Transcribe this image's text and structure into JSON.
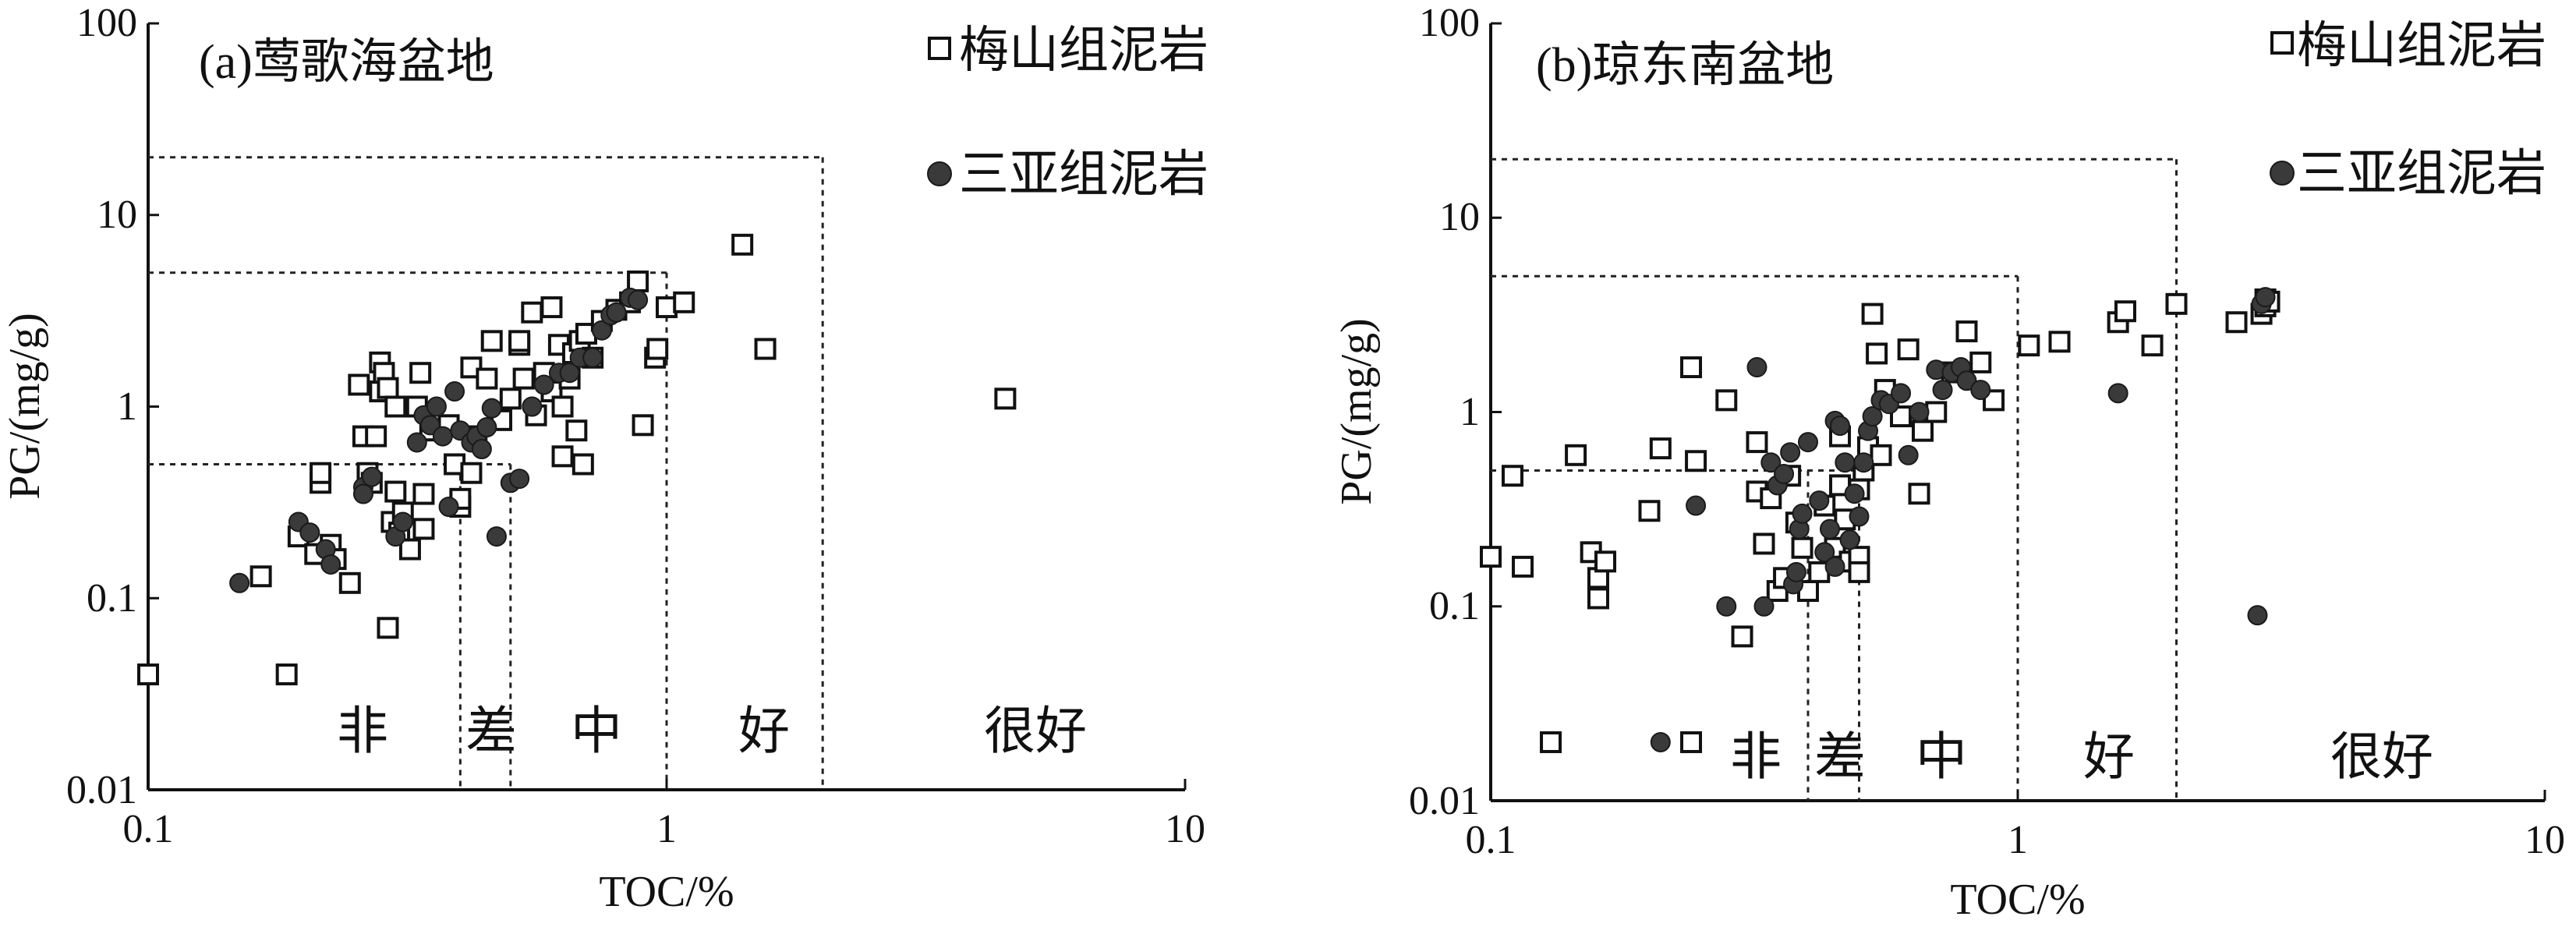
{
  "chart_data": [
    {
      "type": "scatter",
      "title": "(a)莺歌海盆地",
      "xlabel": "TOC/%",
      "ylabel": "PG/(mg/g)",
      "x_scale": "log",
      "y_scale": "log",
      "xlim": [
        0.1,
        10
      ],
      "ylim": [
        0.01,
        100
      ],
      "x_ticks": [
        "0.1",
        "1",
        "10"
      ],
      "y_ticks": [
        "0.01",
        "0.1",
        "1",
        "10",
        "100"
      ],
      "grid": false,
      "legend_position": "top-right",
      "legend": [
        {
          "label": "梅山组泥岩",
          "marker": "open-square"
        },
        {
          "label": "三亚组泥岩",
          "marker": "filled-circle"
        }
      ],
      "region_labels": [
        "非",
        "差",
        "中",
        "好",
        "很好"
      ],
      "threshold_lines": {
        "toc": [
          0.4,
          0.5,
          1,
          2
        ],
        "pg": [
          0.5,
          5,
          20
        ]
      },
      "series": [
        {
          "name": "梅山组泥岩",
          "marker": "open-square",
          "points": [
            [
              0.1,
              0.04
            ],
            [
              0.165,
              0.13
            ],
            [
              0.185,
              0.04
            ],
            [
              0.195,
              0.21
            ],
            [
              0.21,
              0.17
            ],
            [
              0.215,
              0.4
            ],
            [
              0.215,
              0.45
            ],
            [
              0.225,
              0.19
            ],
            [
              0.23,
              0.16
            ],
            [
              0.245,
              0.12
            ],
            [
              0.255,
              1.3
            ],
            [
              0.26,
              0.7
            ],
            [
              0.265,
              0.45
            ],
            [
              0.27,
              0.4
            ],
            [
              0.275,
              0.7
            ],
            [
              0.28,
              1.2
            ],
            [
              0.28,
              1.7
            ],
            [
              0.285,
              1.5
            ],
            [
              0.29,
              0.07
            ],
            [
              0.29,
              1.25
            ],
            [
              0.295,
              0.25
            ],
            [
              0.3,
              1.0
            ],
            [
              0.3,
              0.36
            ],
            [
              0.305,
              0.22
            ],
            [
              0.31,
              0.28
            ],
            [
              0.32,
              0.18
            ],
            [
              0.33,
              1.0
            ],
            [
              0.335,
              1.5
            ],
            [
              0.34,
              0.23
            ],
            [
              0.34,
              0.35
            ],
            [
              0.35,
              0.75
            ],
            [
              0.38,
              0.8
            ],
            [
              0.39,
              0.5
            ],
            [
              0.4,
              0.3
            ],
            [
              0.4,
              0.33
            ],
            [
              0.42,
              0.45
            ],
            [
              0.42,
              1.6
            ],
            [
              0.43,
              0.7
            ],
            [
              0.45,
              1.4
            ],
            [
              0.46,
              2.2
            ],
            [
              0.48,
              0.85
            ],
            [
              0.5,
              1.1
            ],
            [
              0.52,
              2.1
            ],
            [
              0.52,
              2.2
            ],
            [
              0.53,
              1.4
            ],
            [
              0.55,
              3.1
            ],
            [
              0.56,
              0.9
            ],
            [
              0.58,
              1.5
            ],
            [
              0.6,
              3.3
            ],
            [
              0.6,
              1.2
            ],
            [
              0.62,
              2.1
            ],
            [
              0.63,
              1.0
            ],
            [
              0.63,
              0.55
            ],
            [
              0.65,
              1.4
            ],
            [
              0.66,
              1.9
            ],
            [
              0.67,
              0.75
            ],
            [
              0.68,
              2.2
            ],
            [
              0.69,
              0.5
            ],
            [
              0.7,
              2.4
            ],
            [
              0.72,
              1.8
            ],
            [
              0.75,
              2.8
            ],
            [
              0.8,
              3.2
            ],
            [
              0.85,
              3.5
            ],
            [
              0.88,
              4.5
            ],
            [
              0.9,
              0.8
            ],
            [
              0.95,
              1.8
            ],
            [
              0.96,
              2.0
            ],
            [
              1.0,
              3.3
            ],
            [
              1.08,
              3.5
            ],
            [
              1.4,
              7.0
            ],
            [
              1.55,
              2.0
            ],
            [
              4.5,
              1.1
            ]
          ]
        },
        {
          "name": "三亚组泥岩",
          "marker": "filled-circle",
          "points": [
            [
              0.15,
              0.12
            ],
            [
              0.195,
              0.25
            ],
            [
              0.205,
              0.22
            ],
            [
              0.22,
              0.18
            ],
            [
              0.225,
              0.15
            ],
            [
              0.26,
              0.38
            ],
            [
              0.26,
              0.35
            ],
            [
              0.27,
              0.43
            ],
            [
              0.3,
              0.21
            ],
            [
              0.31,
              0.25
            ],
            [
              0.33,
              0.65
            ],
            [
              0.34,
              0.9
            ],
            [
              0.35,
              0.8
            ],
            [
              0.36,
              1.0
            ],
            [
              0.37,
              0.7
            ],
            [
              0.38,
              0.3
            ],
            [
              0.39,
              1.2
            ],
            [
              0.4,
              0.75
            ],
            [
              0.42,
              0.65
            ],
            [
              0.43,
              0.7
            ],
            [
              0.44,
              0.6
            ],
            [
              0.45,
              0.78
            ],
            [
              0.46,
              0.98
            ],
            [
              0.47,
              0.21
            ],
            [
              0.5,
              0.4
            ],
            [
              0.52,
              0.42
            ],
            [
              0.55,
              1.0
            ],
            [
              0.58,
              1.3
            ],
            [
              0.62,
              1.5
            ],
            [
              0.65,
              1.5
            ],
            [
              0.68,
              1.8
            ],
            [
              0.72,
              1.8
            ],
            [
              0.75,
              2.5
            ],
            [
              0.78,
              3.0
            ],
            [
              0.8,
              3.1
            ],
            [
              0.85,
              3.7
            ],
            [
              0.88,
              3.6
            ]
          ]
        }
      ]
    },
    {
      "type": "scatter",
      "title": "(b)琼东南盆地",
      "xlabel": "TOC/%",
      "ylabel": "PG/(mg/g)",
      "x_scale": "log",
      "y_scale": "log",
      "xlim": [
        0.1,
        10
      ],
      "ylim": [
        0.01,
        100
      ],
      "x_ticks": [
        "0.1",
        "1",
        "10"
      ],
      "y_ticks": [
        "0.01",
        "0.1",
        "1",
        "10",
        "100"
      ],
      "grid": false,
      "legend_position": "top-right",
      "legend": [
        {
          "label": "梅山组泥岩",
          "marker": "open-square"
        },
        {
          "label": "三亚组泥岩",
          "marker": "filled-circle"
        }
      ],
      "region_labels": [
        "非",
        "差",
        "中",
        "好",
        "很好"
      ],
      "threshold_lines": {
        "toc": [
          0.4,
          0.5,
          1,
          2
        ],
        "pg": [
          0.5,
          5,
          20
        ]
      },
      "series": [
        {
          "name": "梅山组泥岩",
          "marker": "open-square",
          "points": [
            [
              0.1,
              0.18
            ],
            [
              0.11,
              0.47
            ],
            [
              0.115,
              0.16
            ],
            [
              0.13,
              0.02
            ],
            [
              0.145,
              0.6
            ],
            [
              0.155,
              0.19
            ],
            [
              0.16,
              0.14
            ],
            [
              0.16,
              0.11
            ],
            [
              0.165,
              0.17
            ],
            [
              0.2,
              0.31
            ],
            [
              0.21,
              0.65
            ],
            [
              0.24,
              0.02
            ],
            [
              0.24,
              1.7
            ],
            [
              0.245,
              0.56
            ],
            [
              0.28,
              1.15
            ],
            [
              0.3,
              0.07
            ],
            [
              0.32,
              0.7
            ],
            [
              0.32,
              0.39
            ],
            [
              0.33,
              0.21
            ],
            [
              0.34,
              0.36
            ],
            [
              0.35,
              0.12
            ],
            [
              0.36,
              0.14
            ],
            [
              0.37,
              0.47
            ],
            [
              0.38,
              0.27
            ],
            [
              0.39,
              0.2
            ],
            [
              0.4,
              0.12
            ],
            [
              0.42,
              0.15
            ],
            [
              0.43,
              0.33
            ],
            [
              0.45,
              0.2
            ],
            [
              0.46,
              0.42
            ],
            [
              0.46,
              0.75
            ],
            [
              0.47,
              0.28
            ],
            [
              0.48,
              0.17
            ],
            [
              0.5,
              0.18
            ],
            [
              0.5,
              0.15
            ],
            [
              0.5,
              0.4
            ],
            [
              0.51,
              0.5
            ],
            [
              0.52,
              0.66
            ],
            [
              0.53,
              3.2
            ],
            [
              0.54,
              2.0
            ],
            [
              0.55,
              0.6
            ],
            [
              0.56,
              1.3
            ],
            [
              0.6,
              0.95
            ],
            [
              0.62,
              2.1
            ],
            [
              0.65,
              0.38
            ],
            [
              0.66,
              0.8
            ],
            [
              0.7,
              1.0
            ],
            [
              0.75,
              1.6
            ],
            [
              0.8,
              2.6
            ],
            [
              0.85,
              1.8
            ],
            [
              0.9,
              1.15
            ],
            [
              1.05,
              2.2
            ],
            [
              1.2,
              2.3
            ],
            [
              1.55,
              2.9
            ],
            [
              1.6,
              3.3
            ],
            [
              1.8,
              2.2
            ],
            [
              2.0,
              3.6
            ],
            [
              2.6,
              2.9
            ],
            [
              2.9,
              3.2
            ],
            [
              2.95,
              3.5
            ],
            [
              2.95,
              3.8
            ],
            [
              3.0,
              3.7
            ]
          ]
        },
        {
          "name": "三亚组泥岩",
          "marker": "filled-circle",
          "points": [
            [
              0.21,
              0.02
            ],
            [
              0.245,
              0.33
            ],
            [
              0.28,
              0.1
            ],
            [
              0.32,
              1.7
            ],
            [
              0.33,
              0.1
            ],
            [
              0.34,
              0.55
            ],
            [
              0.35,
              0.42
            ],
            [
              0.36,
              0.48
            ],
            [
              0.37,
              0.62
            ],
            [
              0.375,
              0.13
            ],
            [
              0.38,
              0.15
            ],
            [
              0.385,
              0.25
            ],
            [
              0.39,
              0.3
            ],
            [
              0.4,
              0.7
            ],
            [
              0.42,
              0.35
            ],
            [
              0.43,
              0.19
            ],
            [
              0.44,
              0.25
            ],
            [
              0.45,
              0.16
            ],
            [
              0.45,
              0.9
            ],
            [
              0.46,
              0.85
            ],
            [
              0.47,
              0.55
            ],
            [
              0.48,
              0.22
            ],
            [
              0.49,
              0.38
            ],
            [
              0.5,
              0.29
            ],
            [
              0.51,
              0.55
            ],
            [
              0.52,
              0.8
            ],
            [
              0.53,
              0.95
            ],
            [
              0.55,
              1.15
            ],
            [
              0.57,
              1.1
            ],
            [
              0.6,
              1.25
            ],
            [
              0.62,
              0.6
            ],
            [
              0.65,
              1.0
            ],
            [
              0.7,
              1.65
            ],
            [
              0.72,
              1.3
            ],
            [
              0.75,
              1.6
            ],
            [
              0.78,
              1.7
            ],
            [
              0.8,
              1.45
            ],
            [
              0.85,
              1.3
            ],
            [
              1.55,
              1.25
            ],
            [
              2.85,
              0.09
            ],
            [
              2.9,
              3.6
            ],
            [
              2.95,
              3.9
            ]
          ]
        }
      ]
    }
  ]
}
